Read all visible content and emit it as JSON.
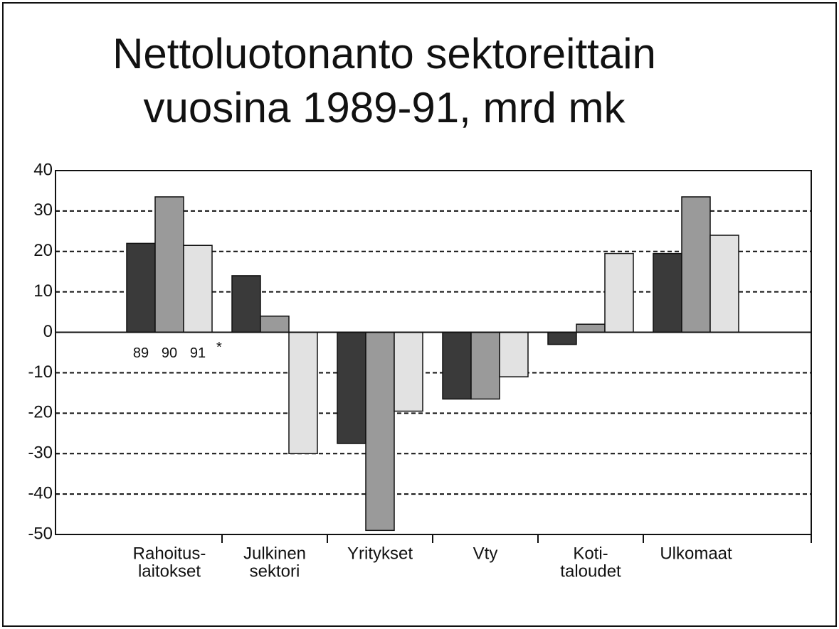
{
  "chart_data": {
    "type": "bar",
    "title": [
      "Nettoluotonanto sektoreittain",
      "vuosina 1989-91, mrd mk"
    ],
    "categories": [
      [
        "Rahoitus-",
        "laitokset"
      ],
      [
        "Julkinen",
        "sektori"
      ],
      [
        "Yritykset"
      ],
      [
        "Vty"
      ],
      [
        "Koti-",
        "taloudet"
      ],
      [
        "Ulkomaat"
      ]
    ],
    "series": [
      {
        "name": "89",
        "color": "#3a3a3a",
        "values": [
          22,
          14,
          -27.5,
          -16.5,
          -3,
          19.5
        ]
      },
      {
        "name": "90",
        "color": "#9a9a9a",
        "values": [
          33.5,
          4,
          -49,
          -16.5,
          2,
          33.5
        ]
      },
      {
        "name": "91",
        "color": "#e2e2e2",
        "values": [
          21.5,
          -30,
          -19.5,
          -11,
          19.5,
          24
        ]
      }
    ],
    "annotation": "*",
    "ylim": [
      -50,
      40
    ],
    "yticks": [
      -50,
      -40,
      -30,
      -20,
      -10,
      0,
      10,
      20,
      30,
      40
    ],
    "grid": true
  }
}
